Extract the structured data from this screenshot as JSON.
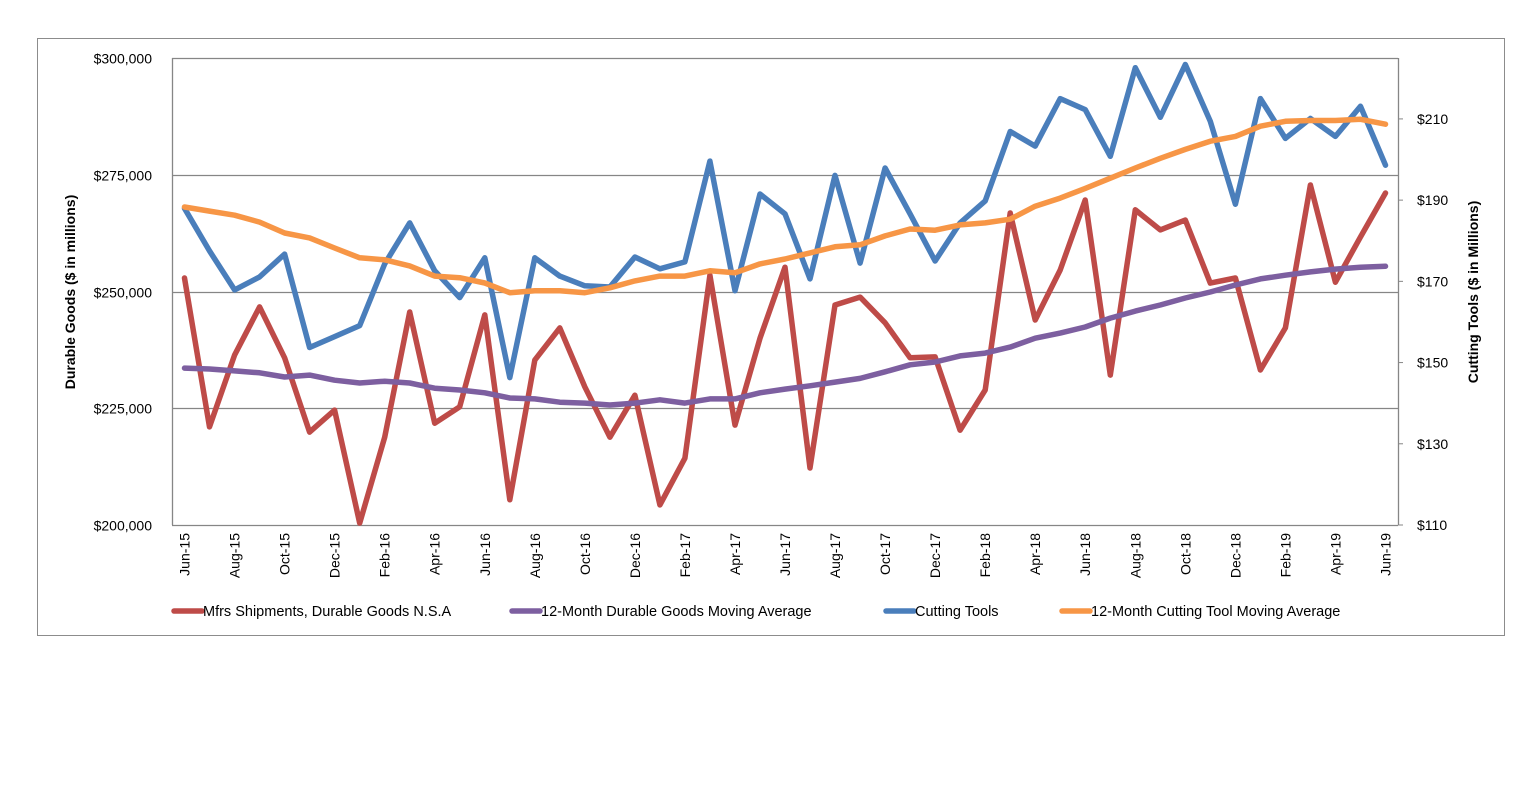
{
  "chart_data": {
    "type": "line",
    "title": "",
    "ylabel_left": "Durable Goods ($ in millions)",
    "ylabel_right": "Cutting Tools ($ in Millions)",
    "ylim_left": [
      200000,
      300000
    ],
    "ylim_right": [
      110,
      225
    ],
    "yticks_left": [
      "$200,000",
      "$225,000",
      "$250,000",
      "$275,000",
      "$300,000"
    ],
    "yticks_left_values": [
      200000,
      225000,
      250000,
      275000,
      300000
    ],
    "yticks_right": [
      "$110",
      "$130",
      "$150",
      "$170",
      "$190",
      "$210"
    ],
    "yticks_right_values": [
      110,
      130,
      150,
      170,
      190,
      210
    ],
    "grid": "horizontal, at left-axis ticks",
    "legend_position": "bottom",
    "categories": [
      "Jun-15",
      "Jul-15",
      "Aug-15",
      "Sep-15",
      "Oct-15",
      "Nov-15",
      "Dec-15",
      "Jan-16",
      "Feb-16",
      "Mar-16",
      "Apr-16",
      "May-16",
      "Jun-16",
      "Jul-16",
      "Aug-16",
      "Sep-16",
      "Oct-16",
      "Nov-16",
      "Dec-16",
      "Jan-17",
      "Feb-17",
      "Mar-17",
      "Apr-17",
      "May-17",
      "Jun-17",
      "Jul-17",
      "Aug-17",
      "Sep-17",
      "Oct-17",
      "Nov-17",
      "Dec-17",
      "Jan-18",
      "Feb-18",
      "Mar-18",
      "Apr-18",
      "May-18",
      "Jun-18",
      "Jul-18",
      "Aug-18",
      "Sep-18",
      "Oct-18",
      "Nov-18",
      "Dec-18",
      "Jan-19",
      "Feb-19",
      "Mar-19",
      "Apr-19",
      "May-19",
      "Jun-19"
    ],
    "x_tick_labels": [
      "Jun-15",
      "",
      "Aug-15",
      "",
      "Oct-15",
      "",
      "Dec-15",
      "",
      "Feb-16",
      "",
      "Apr-16",
      "",
      "Jun-16",
      "",
      "Aug-16",
      "",
      "Oct-16",
      "",
      "Dec-16",
      "",
      "Feb-17",
      "",
      "Apr-17",
      "",
      "Jun-17",
      "",
      "Aug-17",
      "",
      "Oct-17",
      "",
      "Dec-17",
      "",
      "Feb-18",
      "",
      "Apr-18",
      "",
      "Jun-18",
      "",
      "Aug-18",
      "",
      "Oct-18",
      "",
      "Dec-18",
      "",
      "Feb-19",
      "",
      "Apr-19",
      "",
      "Jun-19"
    ],
    "series": [
      {
        "name": "Mfrs Shipments, Durable Goods N.S.A",
        "axis": "left",
        "color": "#be4b48",
        "values": [
          252900,
          221000,
          236400,
          246700,
          235800,
          219900,
          224600,
          200400,
          218800,
          245600,
          221800,
          225300,
          245000,
          205400,
          235300,
          242200,
          229600,
          218800,
          227800,
          204300,
          214300,
          253500,
          221400,
          240000,
          255200,
          212200,
          247100,
          248800,
          243300,
          235800,
          236000,
          220300,
          228900,
          266800,
          243900,
          254600,
          269600,
          232100,
          267500,
          263200,
          265300,
          251800,
          252900,
          233200,
          242200,
          272800,
          252000,
          261700,
          271100
        ]
      },
      {
        "name": "12-Month Durable Goods Moving Average",
        "axis": "left",
        "color": "#7d5fa0",
        "values": [
          233600,
          233400,
          233000,
          232600,
          231700,
          232100,
          231000,
          230400,
          230800,
          230400,
          229300,
          228900,
          228300,
          227200,
          227000,
          226300,
          226100,
          225700,
          226100,
          226800,
          226100,
          227000,
          227000,
          228300,
          229100,
          229800,
          230600,
          231400,
          232800,
          234300,
          234900,
          236200,
          236800,
          238100,
          240000,
          241100,
          242400,
          244300,
          245800,
          247100,
          248600,
          249900,
          251400,
          252700,
          253500,
          254200,
          254800,
          255200,
          255400
        ]
      },
      {
        "name": "Cutting Tools",
        "axis": "right",
        "color": "#4a7ebb",
        "values": [
          188.0,
          177.5,
          167.9,
          171.1,
          176.7,
          153.7,
          156.4,
          159.1,
          174.3,
          184.4,
          172.6,
          166.0,
          175.8,
          146.3,
          175.8,
          171.3,
          168.9,
          168.6,
          176.0,
          173.1,
          174.8,
          199.6,
          167.7,
          191.5,
          186.6,
          170.6,
          196.1,
          174.5,
          197.9,
          186.6,
          175.0,
          184.4,
          189.8,
          206.9,
          203.3,
          215.0,
          212.3,
          200.8,
          222.6,
          210.4,
          223.4,
          209.4,
          189.0,
          215.0,
          205.2,
          210.1,
          205.7,
          213.1,
          198.6
        ]
      },
      {
        "name": "12-Month Cutting Tool Moving Average",
        "axis": "right",
        "color": "#f79646",
        "values": [
          188.3,
          187.3,
          186.3,
          184.6,
          181.9,
          180.7,
          178.2,
          175.8,
          175.3,
          173.8,
          171.3,
          170.9,
          169.6,
          167.2,
          167.7,
          167.7,
          167.2,
          168.4,
          170.1,
          171.3,
          171.3,
          172.6,
          172.1,
          174.3,
          175.5,
          177.0,
          178.5,
          179.0,
          181.2,
          182.9,
          182.6,
          183.9,
          184.4,
          185.3,
          188.5,
          190.5,
          192.9,
          195.4,
          197.9,
          200.3,
          202.5,
          204.5,
          205.7,
          208.2,
          209.4,
          209.6,
          209.6,
          209.9,
          208.7
        ]
      }
    ]
  }
}
